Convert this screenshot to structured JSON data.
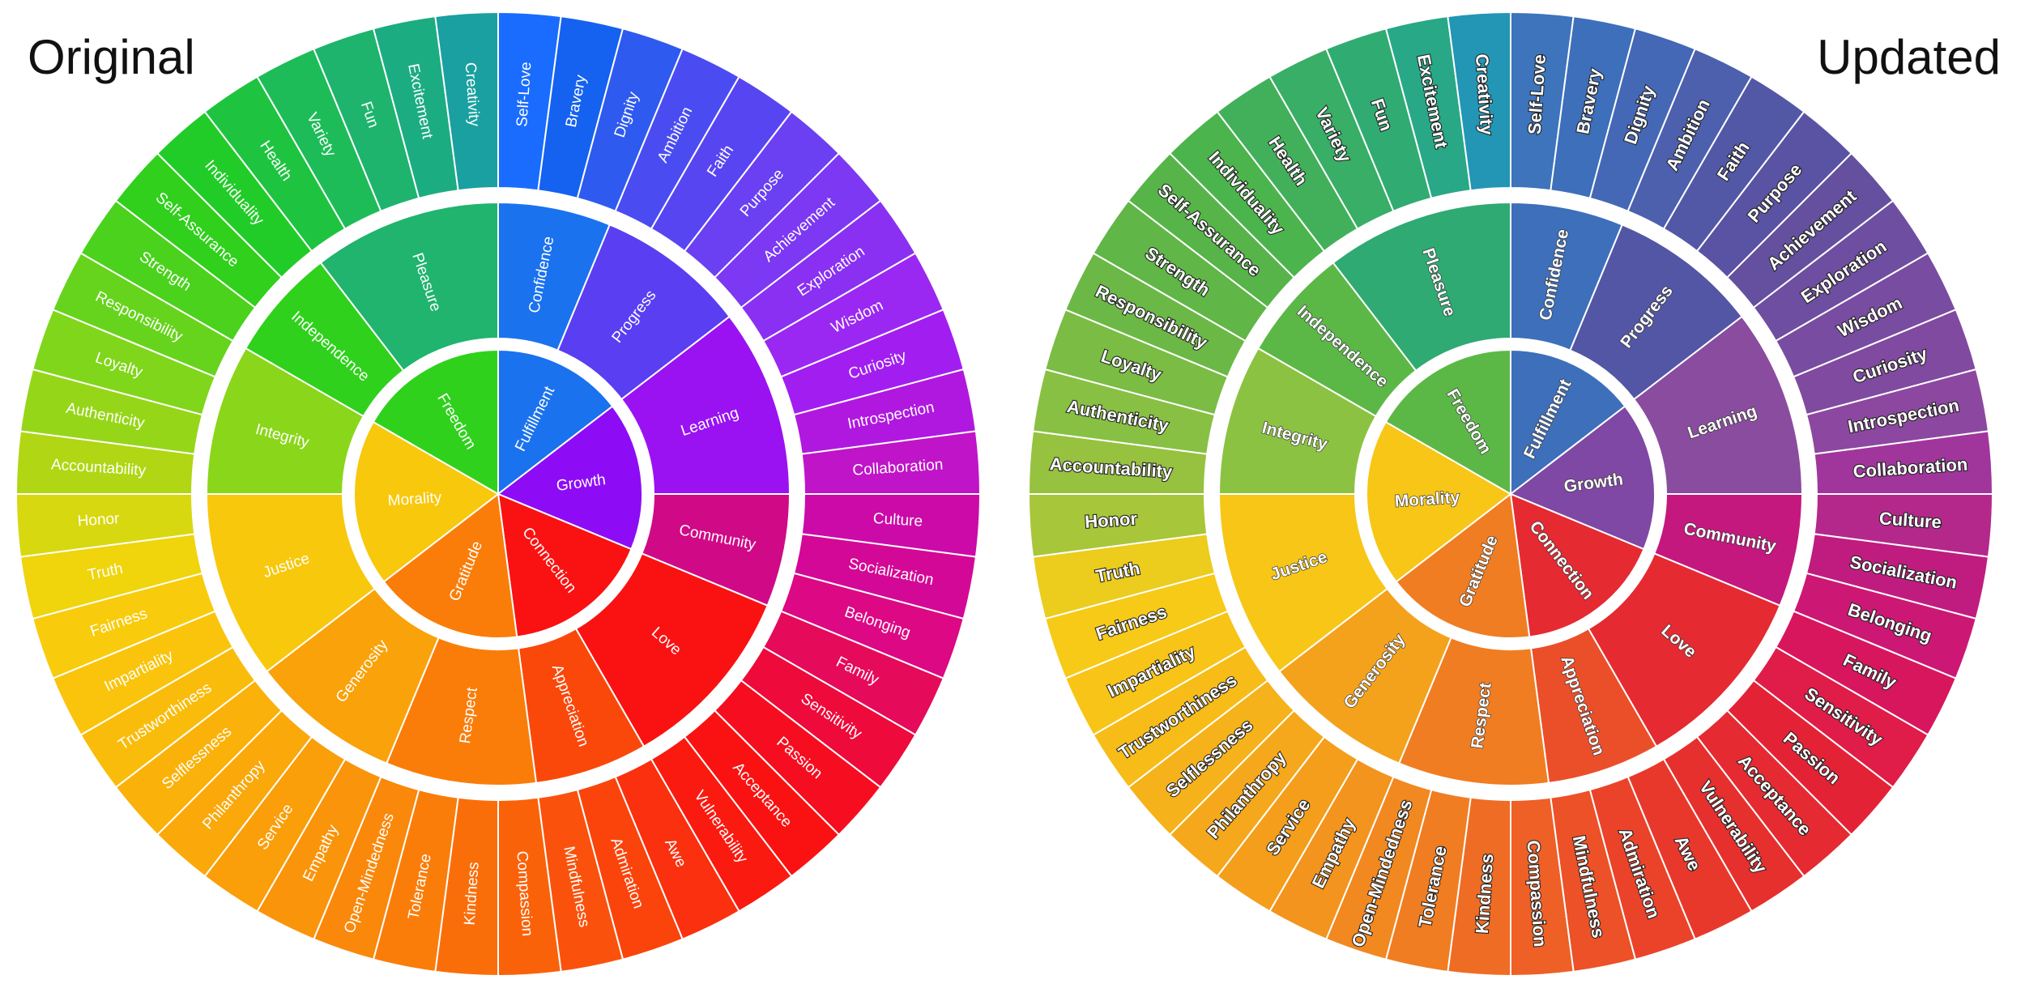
{
  "titles": {
    "left": "Original",
    "right": "Updated"
  },
  "wheel": {
    "core": [
      {
        "label": "Fulfillment",
        "mids": [
          {
            "label": "Confidence",
            "outers": [
              "Self-Love",
              "Bravery",
              "Dignity"
            ]
          },
          {
            "label": "Progress",
            "outers": [
              "Ambition",
              "Faith",
              "Purpose",
              "Achievement"
            ]
          }
        ]
      },
      {
        "label": "Growth",
        "mids": [
          {
            "label": "Learning",
            "outers": [
              "Exploration",
              "Wisdom",
              "Curiosity",
              "Introspection",
              "Collaboration"
            ]
          },
          {
            "label": "Community",
            "outers": [
              "Culture",
              "Socialization",
              "Belonging"
            ]
          }
        ]
      },
      {
        "label": "Connection",
        "mids": [
          {
            "label": "Love",
            "outers": [
              "Family",
              "Sensitivity",
              "Passion",
              "Acceptance",
              "Vulnerability"
            ]
          },
          {
            "label": "Appreciation",
            "outers": [
              "Awe",
              "Admiration",
              "Mindfulness"
            ]
          }
        ]
      },
      {
        "label": "Gratitude",
        "mids": [
          {
            "label": "Respect",
            "outers": [
              "Compassion",
              "Kindness",
              "Tolerance",
              "Open-Mindedness"
            ]
          },
          {
            "label": "Generosity",
            "outers": [
              "Empathy",
              "Service",
              "Philanthropy",
              "Selflessness"
            ]
          }
        ]
      },
      {
        "label": "Morality",
        "mids": [
          {
            "label": "Justice",
            "outers": [
              "Trustworthiness",
              "Impartiality",
              "Fairness",
              "Truth",
              "Honor"
            ]
          },
          {
            "label": "Integrity",
            "outers": [
              "Accountability",
              "Authenticity",
              "Loyalty",
              "Responsibility"
            ]
          }
        ]
      },
      {
        "label": "Freedom",
        "mids": [
          {
            "label": "Independence",
            "outers": [
              "Strength",
              "Self-Assurance",
              "Individuality"
            ]
          },
          {
            "label": "Pleasure",
            "outers": [
              "Health",
              "Variety",
              "Fun",
              "Excitement",
              "Creativity"
            ]
          }
        ]
      }
    ]
  },
  "colors": {
    "original": {
      "Fulfillment": "#1a72ee",
      "Growth": "#8d0cf5",
      "Connection": "#fa1212",
      "Gratitude": "#fa7d0a",
      "Morality": "#f8c80c",
      "Freedom": "#2fd11c",
      "Confidence": "#1a72ee",
      "Progress": "#5a3ef2",
      "Learning": "#9a12f2",
      "Community": "#d00a86",
      "Love": "#fa1212",
      "Appreciation": "#fa480a",
      "Respect": "#fa7d0a",
      "Generosity": "#faa20a",
      "Justice": "#f8c80c",
      "Integrity": "#8ad61a",
      "Independence": "#2fd11c",
      "Pleasure": "#20b46e",
      "Self-Love": "#1a6cff",
      "Bravery": "#1562f0",
      "Dignity": "#2e5af0",
      "Ambition": "#4a4cf2",
      "Faith": "#5845f2",
      "Purpose": "#6a40f2",
      "Achievement": "#7c38f2",
      "Exploration": "#8a30f2",
      "Wisdom": "#9a28f2",
      "Curiosity": "#a21ef0",
      "Introspection": "#b018e0",
      "Collaboration": "#c014c8",
      "Culture": "#cc0aa8",
      "Socialization": "#d40896",
      "Belonging": "#dc0884",
      "Family": "#e60a5a",
      "Sensitivity": "#ee0a3a",
      "Passion": "#f60e20",
      "Acceptance": "#fa1212",
      "Vulnerability": "#fa1a10",
      "Awe": "#fa300e",
      "Admiration": "#fa440c",
      "Mindfulness": "#fa520c",
      "Compassion": "#fa620a",
      "Kindness": "#fa6e0a",
      "Tolerance": "#fa7d0a",
      "Open-Mindedness": "#fa880a",
      "Empathy": "#fa940a",
      "Service": "#fa9e0a",
      "Philanthropy": "#faa80a",
      "Selflessness": "#fab20a",
      "Trustworthiness": "#fabc0a",
      "Impartiality": "#fac40c",
      "Fairness": "#f8cc0c",
      "Truth": "#f0d40c",
      "Honor": "#d8d810",
      "Accountability": "#b0d614",
      "Authenticity": "#96d618",
      "Loyalty": "#80d61a",
      "Responsibility": "#66d41c",
      "Strength": "#4ad21c",
      "Self-Assurance": "#30d01c",
      "Individuality": "#22cc28",
      "Health": "#1ec440",
      "Variety": "#1ebc58",
      "Fun": "#1eb46e",
      "Excitement": "#1cac82",
      "Creativity": "#1aa0a0"
    },
    "updated": {
      "Fulfillment": "#3d6fbb",
      "Growth": "#7f48a4",
      "Connection": "#e52a31",
      "Gratitude": "#f07d22",
      "Morality": "#f7c617",
      "Freedom": "#5cb846",
      "Confidence": "#3d6fbb",
      "Progress": "#5256a4",
      "Learning": "#8a4c9f",
      "Community": "#c4187e",
      "Love": "#e52a31",
      "Appreciation": "#ea4f2a",
      "Respect": "#f07d22",
      "Generosity": "#f4a21c",
      "Justice": "#f7c617",
      "Integrity": "#8cc242",
      "Independence": "#5cb846",
      "Pleasure": "#2eaa72",
      "Self-Love": "#3d74bc",
      "Bravery": "#3d6fbb",
      "Dignity": "#4468b6",
      "Ambition": "#4c60ae",
      "Faith": "#5258a6",
      "Purpose": "#5a52a2",
      "Achievement": "#64509f",
      "Exploration": "#6e4ea0",
      "Wisdom": "#784ca0",
      "Curiosity": "#804aa0",
      "Introspection": "#8c48a0",
      "Collaboration": "#a0369c",
      "Culture": "#b4288c",
      "Socialization": "#c01c80",
      "Belonging": "#cc1874",
      "Family": "#d8165e",
      "Sensitivity": "#e01c48",
      "Passion": "#e42236",
      "Acceptance": "#e52a31",
      "Vulnerability": "#e6302e",
      "Awe": "#e8382c",
      "Admiration": "#ea432a",
      "Mindfulness": "#ec5128",
      "Compassion": "#ee6026",
      "Kindness": "#ef6c24",
      "Tolerance": "#f07d22",
      "Open-Mindedness": "#f28820",
      "Empathy": "#f3941e",
      "Service": "#f49e1c",
      "Philanthropy": "#f5a81c",
      "Selflessness": "#f6b21a",
      "Trustworthiness": "#f7bc18",
      "Impartiality": "#f8c417",
      "Fairness": "#f7ca17",
      "Truth": "#eccc1c",
      "Honor": "#a8c63a",
      "Accountability": "#96c240",
      "Authenticity": "#88c044",
      "Loyalty": "#7abc44",
      "Responsibility": "#6cb846",
      "Strength": "#60b646",
      "Self-Assurance": "#56b448",
      "Individuality": "#4cb44c",
      "Health": "#42b05a",
      "Variety": "#38ae66",
      "Fun": "#30ac72",
      "Excitement": "#28a886",
      "Creativity": "#2296b4"
    }
  }
}
